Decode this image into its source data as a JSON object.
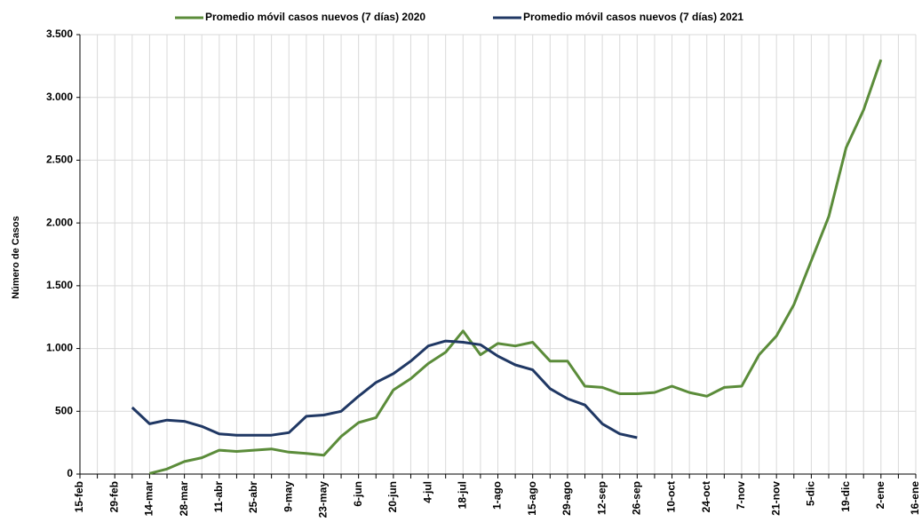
{
  "chart_data": {
    "type": "line",
    "y_label": "Número de Casos",
    "legend": "top",
    "grid": true,
    "categories": [
      "15-feb",
      null,
      "29-feb",
      null,
      "14-mar",
      null,
      "28-mar",
      null,
      "11-abr",
      null,
      "25-abr",
      null,
      "9-may",
      null,
      "23-may",
      null,
      "6-jun",
      null,
      "20-jun",
      null,
      "4-jul",
      null,
      "18-jul",
      null,
      "1-ago",
      null,
      "15-ago",
      null,
      "29-ago",
      null,
      "12-sep",
      null,
      "26-sep",
      null,
      "10-oct",
      null,
      "24-oct",
      null,
      "7-nov",
      null,
      "21-nov",
      null,
      "5-dic",
      null,
      "19-dic",
      null,
      "2-ene",
      null,
      "16-ene"
    ],
    "series": [
      {
        "name": "Promedio móvil casos nuevos (7 días) 2020",
        "color": "#5b8c3a",
        "values": [
          null,
          null,
          null,
          null,
          5,
          40,
          100,
          130,
          190,
          180,
          190,
          200,
          175,
          165,
          150,
          300,
          410,
          450,
          670,
          760,
          880,
          970,
          1140,
          950,
          1040,
          1020,
          1050,
          900,
          900,
          700,
          690,
          640,
          640,
          650,
          700,
          650,
          620,
          690,
          700,
          950,
          1100,
          1350,
          1700,
          2050,
          2600,
          2900,
          3300,
          null,
          null
        ]
      },
      {
        "name": "Promedio móvil casos nuevos (7 días) 2021",
        "color": "#203864",
        "values": [
          null,
          null,
          null,
          530,
          400,
          430,
          420,
          380,
          320,
          310,
          310,
          310,
          330,
          460,
          470,
          500,
          620,
          730,
          800,
          900,
          1020,
          1060,
          1050,
          1030,
          940,
          870,
          830,
          680,
          600,
          550,
          400,
          320,
          290,
          null,
          null,
          null,
          null,
          null,
          null,
          null,
          null,
          null,
          null,
          null,
          null,
          null,
          null,
          null,
          null
        ]
      }
    ],
    "ylim": [
      0,
      3500
    ],
    "yticks": [
      0,
      500,
      {
        "value": 1000,
        "label": "1.000"
      },
      {
        "value": 1500,
        "label": "1.500"
      },
      {
        "value": 2000,
        "label": "2.000"
      },
      {
        "value": 2500,
        "label": "2.500"
      },
      {
        "value": 3000,
        "label": "3.000"
      },
      {
        "value": 3500,
        "label": "3.500"
      }
    ]
  }
}
